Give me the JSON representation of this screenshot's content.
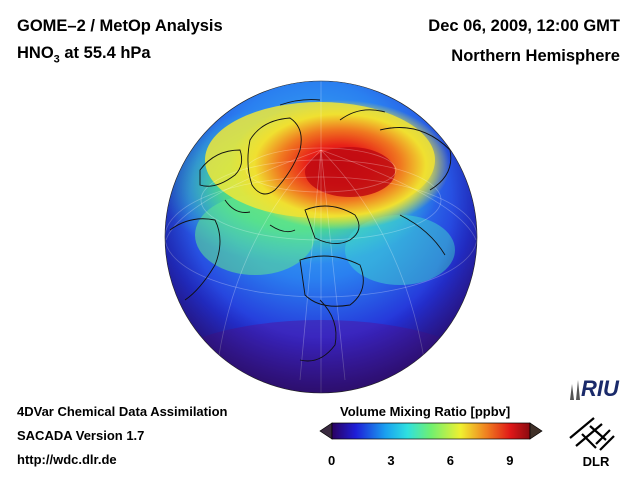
{
  "header": {
    "title_line1": "GOME–2 / MetOp Analysis",
    "species_prefix": "HNO",
    "species_subscript": "3",
    "species_suffix": " at 55.4 hPa",
    "datetime": "Dec 06, 2009, 12:00 GMT",
    "region": "Northern Hemisphere"
  },
  "footer": {
    "method": "4DVar Chemical Data Assimilation",
    "version": "SACADA Version 1.7",
    "url": "http://wdc.dlr.de"
  },
  "colorbar": {
    "label": "Volume Mixing Ratio [ppbv]",
    "ticks": [
      "0",
      "3",
      "6",
      "9"
    ],
    "min": 0,
    "max": 10,
    "colors": [
      "#2a0060",
      "#1e1ed8",
      "#1aa0f0",
      "#2ee0e0",
      "#70f070",
      "#f0f030",
      "#f08020",
      "#e01818",
      "#8a0a10"
    ]
  },
  "logos": {
    "riu": "RIU",
    "dlr": "DLR"
  }
}
